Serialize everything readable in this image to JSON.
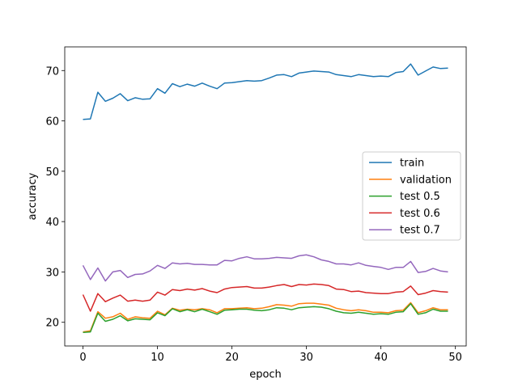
{
  "chart_data": {
    "type": "line",
    "title": "",
    "xlabel": "epoch",
    "ylabel": "accuracy",
    "xlim": [
      -2.45,
      51.45
    ],
    "ylim": [
      15.3,
      74.7
    ],
    "xticks": [
      0,
      10,
      20,
      30,
      40,
      50
    ],
    "yticks": [
      20,
      30,
      40,
      50,
      60,
      70
    ],
    "grid": false,
    "legend_position": "center-right",
    "x": [
      0,
      1,
      2,
      3,
      4,
      5,
      6,
      7,
      8,
      9,
      10,
      11,
      12,
      13,
      14,
      15,
      16,
      17,
      18,
      19,
      20,
      21,
      22,
      23,
      24,
      25,
      26,
      27,
      28,
      29,
      30,
      31,
      32,
      33,
      34,
      35,
      36,
      37,
      38,
      39,
      40,
      41,
      42,
      43,
      44,
      45,
      46,
      47,
      48,
      49
    ],
    "series": [
      {
        "name": "train",
        "color": "#1f77b4",
        "values": [
          60.3,
          60.4,
          65.7,
          63.9,
          64.5,
          65.4,
          64.0,
          64.6,
          64.3,
          64.4,
          66.4,
          65.5,
          67.4,
          66.8,
          67.3,
          66.9,
          67.5,
          66.9,
          66.4,
          67.5,
          67.6,
          67.8,
          68.0,
          67.9,
          68.0,
          68.5,
          69.1,
          69.2,
          68.8,
          69.5,
          69.7,
          69.9,
          69.8,
          69.7,
          69.2,
          69.0,
          68.8,
          69.2,
          69.0,
          68.8,
          68.9,
          68.8,
          69.6,
          69.8,
          71.3,
          69.1,
          69.9,
          70.7,
          70.4,
          70.5
        ]
      },
      {
        "name": "validation",
        "color": "#ff7f0e",
        "values": [
          18.1,
          18.3,
          22.1,
          20.8,
          21.1,
          21.8,
          20.6,
          21.1,
          20.9,
          20.8,
          22.2,
          21.5,
          22.8,
          22.4,
          22.6,
          22.5,
          22.7,
          22.5,
          21.9,
          22.7,
          22.7,
          22.8,
          22.9,
          22.7,
          22.8,
          23.1,
          23.5,
          23.4,
          23.2,
          23.7,
          23.8,
          23.8,
          23.6,
          23.4,
          22.8,
          22.5,
          22.3,
          22.5,
          22.3,
          22.0,
          22.0,
          21.9,
          22.3,
          22.4,
          23.9,
          21.9,
          22.3,
          22.9,
          22.5,
          22.5
        ]
      },
      {
        "name": "test 0.5",
        "color": "#2ca02c",
        "values": [
          18.0,
          18.1,
          21.8,
          20.2,
          20.6,
          21.3,
          20.3,
          20.7,
          20.6,
          20.5,
          21.9,
          21.3,
          22.7,
          22.1,
          22.5,
          22.1,
          22.6,
          22.1,
          21.6,
          22.4,
          22.5,
          22.6,
          22.6,
          22.4,
          22.3,
          22.5,
          22.9,
          22.8,
          22.5,
          22.9,
          23.0,
          23.1,
          23.0,
          22.7,
          22.2,
          21.9,
          21.8,
          22.0,
          21.8,
          21.6,
          21.7,
          21.6,
          22.0,
          22.1,
          23.7,
          21.6,
          21.9,
          22.6,
          22.2,
          22.2
        ]
      },
      {
        "name": "test 0.6",
        "color": "#d62728",
        "values": [
          25.5,
          22.2,
          25.7,
          24.1,
          24.8,
          25.4,
          24.2,
          24.4,
          24.2,
          24.4,
          26.0,
          25.4,
          26.5,
          26.3,
          26.6,
          26.4,
          26.7,
          26.2,
          25.9,
          26.6,
          26.9,
          27.0,
          27.1,
          26.8,
          26.8,
          27.0,
          27.3,
          27.5,
          27.1,
          27.5,
          27.4,
          27.6,
          27.5,
          27.3,
          26.6,
          26.5,
          26.1,
          26.2,
          25.9,
          25.8,
          25.7,
          25.7,
          26.0,
          26.1,
          27.2,
          25.5,
          25.8,
          26.3,
          26.1,
          26.0
        ]
      },
      {
        "name": "test 0.7",
        "color": "#9467bd",
        "values": [
          31.3,
          28.5,
          30.8,
          28.2,
          30.0,
          30.3,
          28.9,
          29.5,
          29.6,
          30.2,
          31.3,
          30.7,
          31.8,
          31.6,
          31.7,
          31.5,
          31.5,
          31.4,
          31.4,
          32.3,
          32.2,
          32.7,
          33.0,
          32.6,
          32.6,
          32.7,
          32.9,
          32.8,
          32.7,
          33.2,
          33.4,
          33.0,
          32.4,
          32.1,
          31.6,
          31.6,
          31.4,
          31.8,
          31.3,
          31.1,
          30.9,
          30.5,
          30.9,
          30.9,
          32.1,
          29.9,
          30.1,
          30.7,
          30.2,
          30.0
        ]
      }
    ]
  }
}
